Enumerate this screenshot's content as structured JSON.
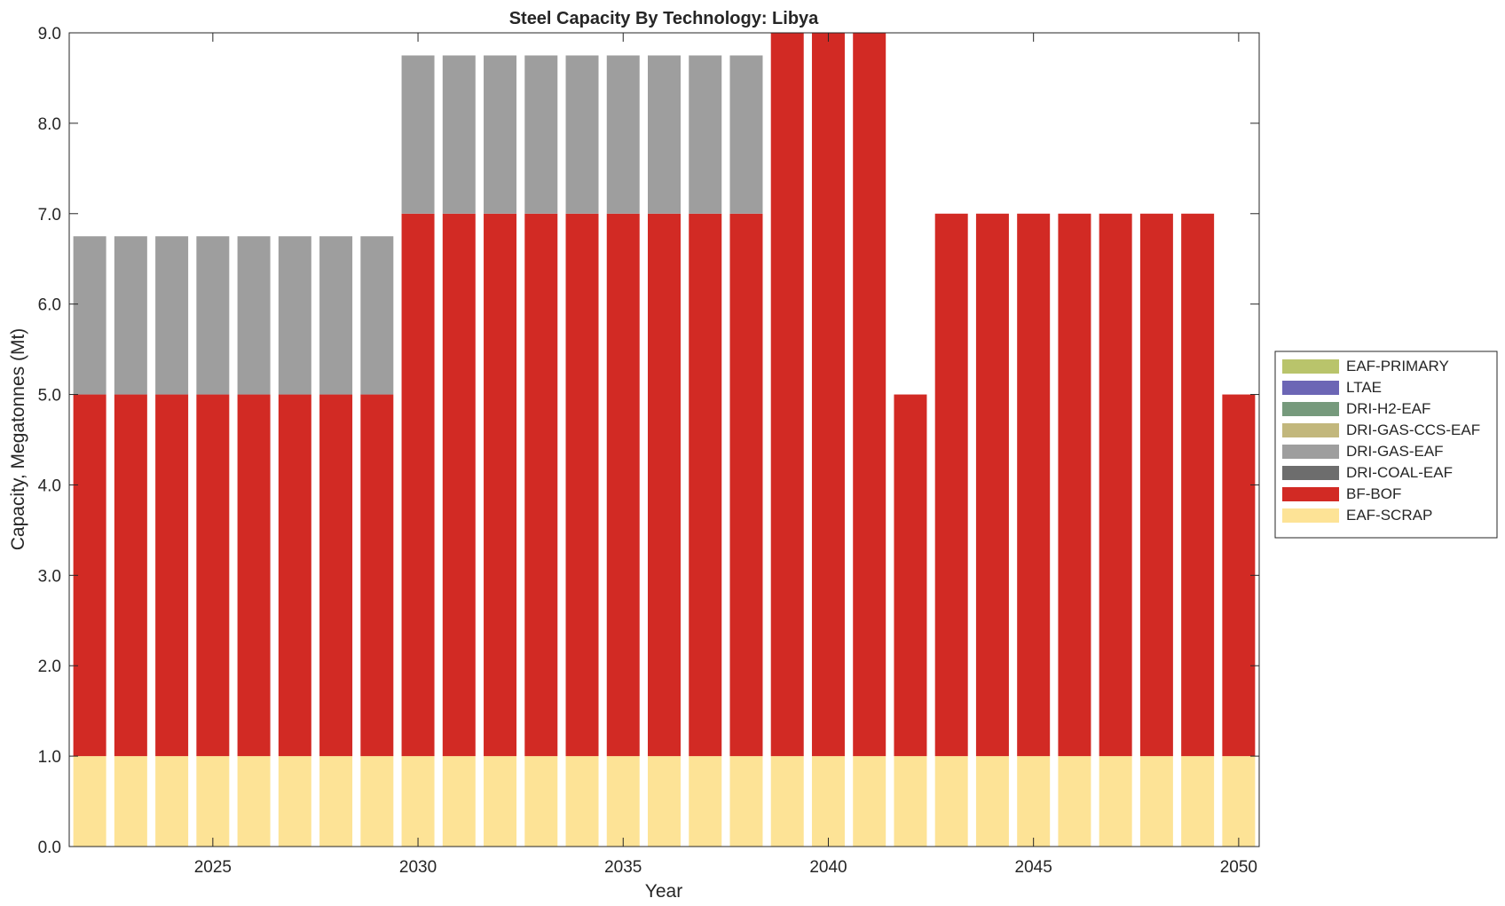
{
  "chart_data": {
    "type": "bar",
    "stacked": true,
    "title": "Steel Capacity By Technology: Libya",
    "xlabel": "Year",
    "ylabel": "Capacity, Megatonnes (Mt)",
    "ylim": [
      0,
      9
    ],
    "xlim": [
      2021.5,
      2050.5
    ],
    "x_ticks": [
      2025,
      2030,
      2035,
      2040,
      2045,
      2050
    ],
    "y_ticks": [
      0,
      1,
      2,
      3,
      4,
      5,
      6,
      7,
      8,
      9
    ],
    "y_tick_labels": [
      "0.0",
      "1.0",
      "2.0",
      "3.0",
      "4.0",
      "5.0",
      "6.0",
      "7.0",
      "8.0",
      "9.0"
    ],
    "grid": false,
    "legend_position": "outside-right",
    "x": [
      2022,
      2023,
      2024,
      2025,
      2026,
      2027,
      2028,
      2029,
      2030,
      2031,
      2032,
      2033,
      2034,
      2035,
      2036,
      2037,
      2038,
      2039,
      2040,
      2041,
      2042,
      2043,
      2044,
      2045,
      2046,
      2047,
      2048,
      2049,
      2050
    ],
    "series": [
      {
        "name": "EAF-SCRAP",
        "color": "#fde396",
        "values": [
          1,
          1,
          1,
          1,
          1,
          1,
          1,
          1,
          1,
          1,
          1,
          1,
          1,
          1,
          1,
          1,
          1,
          1,
          1,
          1,
          1,
          1,
          1,
          1,
          1,
          1,
          1,
          1,
          1
        ]
      },
      {
        "name": "BF-BOF",
        "color": "#d22a24",
        "values": [
          4,
          4,
          4,
          4,
          4,
          4,
          4,
          4,
          6,
          6,
          6,
          6,
          6,
          6,
          6,
          6,
          6,
          8.5,
          8.5,
          8.5,
          4,
          6,
          6,
          6,
          6,
          6,
          6,
          6,
          4
        ]
      },
      {
        "name": "DRI-COAL-EAF",
        "color": "#6d6d6d",
        "values": [
          0,
          0,
          0,
          0,
          0,
          0,
          0,
          0,
          0,
          0,
          0,
          0,
          0,
          0,
          0,
          0,
          0,
          0,
          0,
          0,
          0,
          0,
          0,
          0,
          0,
          0,
          0,
          0,
          0
        ]
      },
      {
        "name": "DRI-GAS-EAF",
        "color": "#9e9e9e",
        "values": [
          1.75,
          1.75,
          1.75,
          1.75,
          1.75,
          1.75,
          1.75,
          1.75,
          1.75,
          1.75,
          1.75,
          1.75,
          1.75,
          1.75,
          1.75,
          1.75,
          1.75,
          0,
          0,
          0,
          0,
          0,
          0,
          0,
          0,
          0,
          0,
          0,
          0
        ]
      },
      {
        "name": "DRI-GAS-CCS-EAF",
        "color": "#c2b77c",
        "values": [
          0,
          0,
          0,
          0,
          0,
          0,
          0,
          0,
          0,
          0,
          0,
          0,
          0,
          0,
          0,
          0,
          0,
          0,
          0,
          0,
          0,
          0,
          0,
          0,
          0,
          0,
          0,
          0,
          0
        ]
      },
      {
        "name": "DRI-H2-EAF",
        "color": "#769a7c",
        "values": [
          0,
          0,
          0,
          0,
          0,
          0,
          0,
          0,
          0,
          0,
          0,
          0,
          0,
          0,
          0,
          0,
          0,
          0,
          0,
          0,
          0,
          0,
          0,
          0,
          0,
          0,
          0,
          0,
          0
        ]
      },
      {
        "name": "LTAE",
        "color": "#6c66b5",
        "values": [
          0,
          0,
          0,
          0,
          0,
          0,
          0,
          0,
          0,
          0,
          0,
          0,
          0,
          0,
          0,
          0,
          0,
          0,
          0,
          0,
          0,
          0,
          0,
          0,
          0,
          0,
          0,
          0,
          0
        ]
      },
      {
        "name": "EAF-PRIMARY",
        "color": "#b9c46b",
        "values": [
          0,
          0,
          0,
          0,
          0,
          0,
          0,
          0,
          0,
          0,
          0,
          0,
          0,
          0,
          0,
          0,
          0,
          0,
          0,
          0,
          0,
          0,
          0,
          0,
          0,
          0,
          0,
          0,
          0
        ]
      }
    ],
    "legend_order": [
      "EAF-PRIMARY",
      "LTAE",
      "DRI-H2-EAF",
      "DRI-GAS-CCS-EAF",
      "DRI-GAS-EAF",
      "DRI-COAL-EAF",
      "BF-BOF",
      "EAF-SCRAP"
    ]
  }
}
